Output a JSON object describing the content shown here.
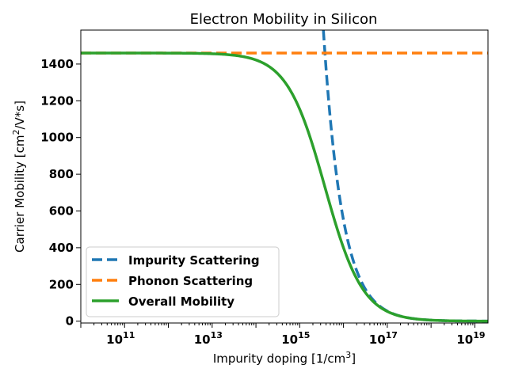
{
  "chart_data": {
    "type": "line",
    "title": "Electron Mobility in Silicon",
    "xlabel": "Impurity doping [1/cm",
    "xlabel_sup": "3",
    "xlabel_end": "]",
    "ylabel_pre": "Carrier Mobility [cm",
    "ylabel_sup": "2",
    "ylabel_end": "/V*s]",
    "xscale": "log",
    "xlim_exp": [
      10.0,
      19.3
    ],
    "ylim": [
      -10,
      1585
    ],
    "x_tick_exponents": [
      "11",
      "13",
      "15",
      "17",
      "19"
    ],
    "x_tick_base": "10",
    "y_ticks": [
      0,
      200,
      400,
      600,
      800,
      1000,
      1200,
      1400
    ],
    "y_tick_labels": [
      "0",
      "200",
      "400",
      "600",
      "800",
      "1000",
      "1200",
      "1400"
    ],
    "legend_position": "lower-left",
    "model": {
      "mu_phonon": 1460,
      "impurity_coefficient": 5.5e+18
    },
    "series": [
      {
        "name": "Impurity Scattering",
        "color": "#1f77b4",
        "style": "dashed"
      },
      {
        "name": "Phonon Scattering",
        "color": "#ff7f0e",
        "style": "dashed"
      },
      {
        "name": "Overall Mobility",
        "color": "#2ca02c",
        "style": "solid"
      }
    ]
  }
}
